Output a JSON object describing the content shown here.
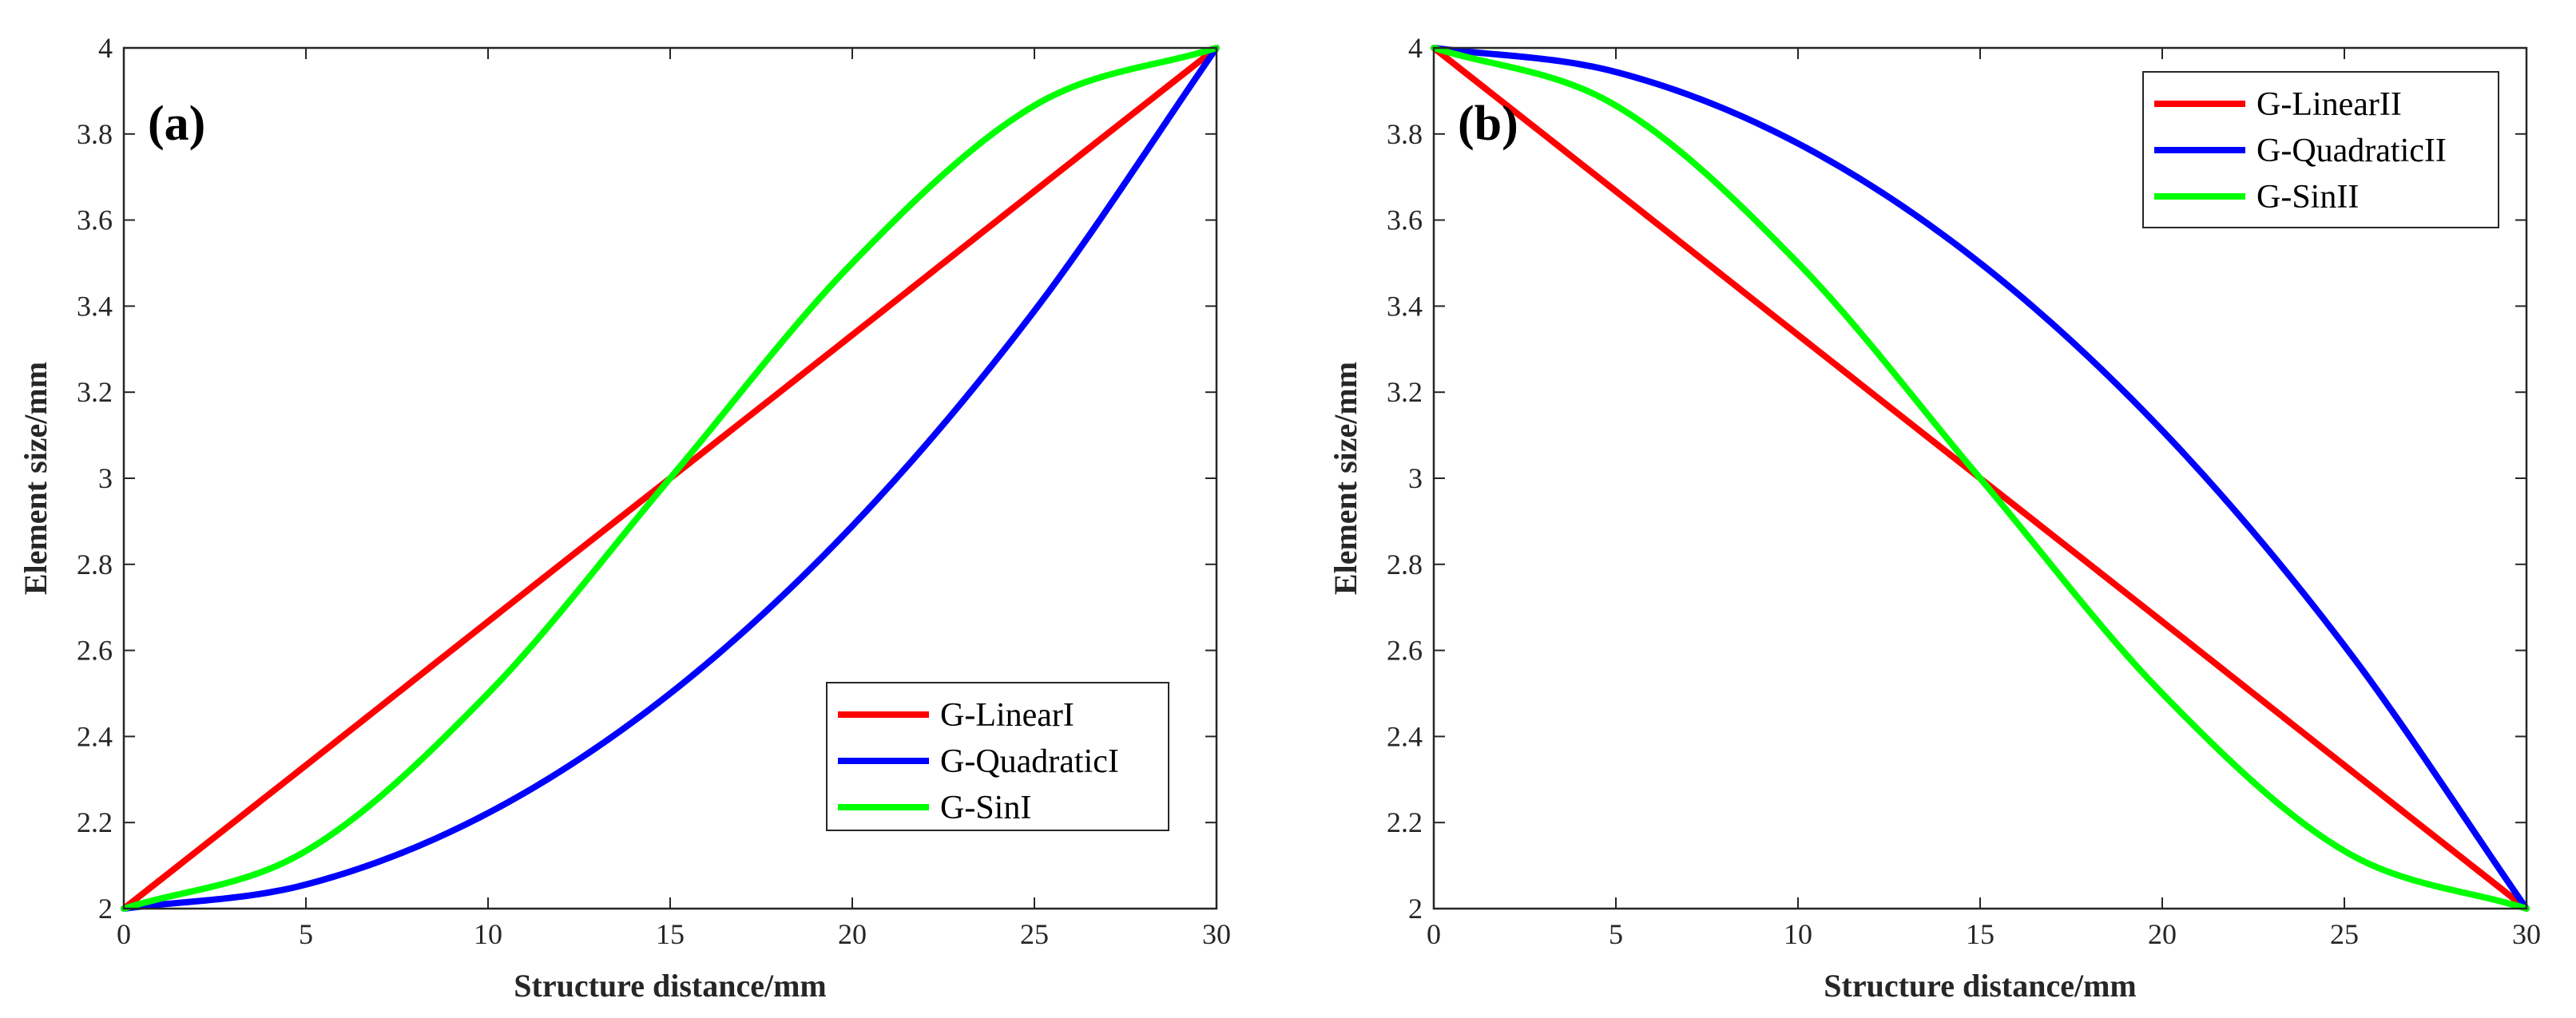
{
  "chart_data": [
    {
      "type": "line",
      "panel_label": "(a)",
      "xlabel": "Structure distance/mm",
      "ylabel": "Element size/mm",
      "xlim": [
        0,
        30
      ],
      "ylim": [
        2,
        4
      ],
      "xticks": [
        0,
        5,
        10,
        15,
        20,
        25,
        30
      ],
      "xtick_labels": [
        "0",
        "5",
        "10",
        "15",
        "20",
        "25",
        "30"
      ],
      "yticks": [
        2,
        2.2,
        2.4,
        2.6,
        2.8,
        3,
        3.2,
        3.4,
        3.6,
        3.8,
        4
      ],
      "ytick_labels": [
        "2",
        "2.2",
        "2.4",
        "2.6",
        "2.8",
        "3",
        "3.2",
        "3.4",
        "3.6",
        "3.8",
        "4"
      ],
      "grid": false,
      "legend_position": "bottom-right",
      "series": [
        {
          "name": "G-LinearI",
          "color": "#ff0000",
          "x": [
            0,
            5,
            10,
            15,
            20,
            25,
            30
          ],
          "y": [
            2.0,
            2.333,
            2.667,
            3.0,
            3.333,
            3.667,
            4.0
          ]
        },
        {
          "name": "G-QuadraticI",
          "color": "#0000ff",
          "x": [
            0,
            5,
            10,
            15,
            20,
            25,
            30
          ],
          "y": [
            2.0,
            2.056,
            2.222,
            2.5,
            2.889,
            3.389,
            4.0
          ]
        },
        {
          "name": "G-SinI",
          "color": "#00ff00",
          "x": [
            0,
            5,
            10,
            15,
            20,
            25,
            30
          ],
          "y": [
            2.0,
            2.134,
            2.5,
            3.0,
            3.5,
            3.866,
            4.0
          ]
        }
      ]
    },
    {
      "type": "line",
      "panel_label": "(b)",
      "xlabel": "Structure distance/mm",
      "ylabel": "Element size/mm",
      "xlim": [
        0,
        30
      ],
      "ylim": [
        2,
        4
      ],
      "xticks": [
        0,
        5,
        10,
        15,
        20,
        25,
        30
      ],
      "xtick_labels": [
        "0",
        "5",
        "10",
        "15",
        "20",
        "25",
        "30"
      ],
      "yticks": [
        2,
        2.2,
        2.4,
        2.6,
        2.8,
        3,
        3.2,
        3.4,
        3.6,
        3.8,
        4
      ],
      "ytick_labels": [
        "2",
        "2.2",
        "2.4",
        "2.6",
        "2.8",
        "3",
        "3.2",
        "3.4",
        "3.6",
        "3.8",
        "4"
      ],
      "grid": false,
      "legend_position": "top-right",
      "series": [
        {
          "name": "G-LinearII",
          "color": "#ff0000",
          "x": [
            0,
            5,
            10,
            15,
            20,
            25,
            30
          ],
          "y": [
            4.0,
            3.667,
            3.333,
            3.0,
            2.667,
            2.333,
            2.0
          ]
        },
        {
          "name": "G-QuadraticII",
          "color": "#0000ff",
          "x": [
            0,
            5,
            10,
            15,
            20,
            25,
            30
          ],
          "y": [
            4.0,
            3.944,
            3.778,
            3.5,
            3.111,
            2.611,
            2.0
          ]
        },
        {
          "name": "G-SinII",
          "color": "#00ff00",
          "x": [
            0,
            5,
            10,
            15,
            20,
            25,
            30
          ],
          "y": [
            4.0,
            3.866,
            3.5,
            3.0,
            2.5,
            2.134,
            2.0
          ]
        }
      ]
    }
  ]
}
